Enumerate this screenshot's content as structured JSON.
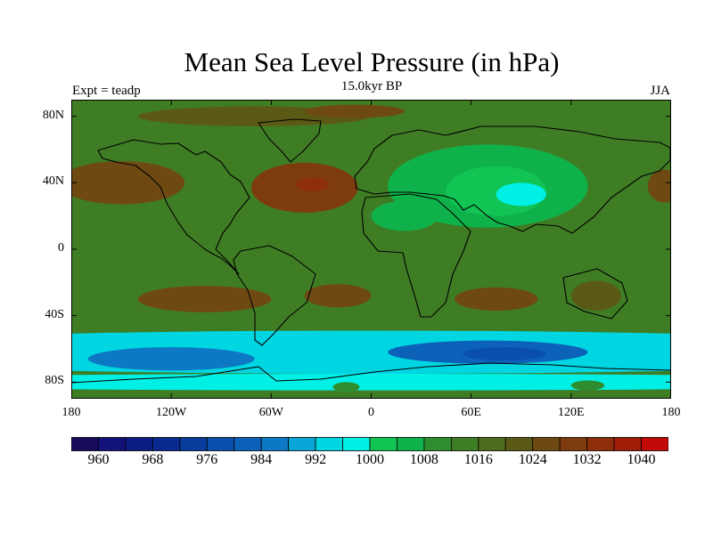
{
  "title": "Mean Sea Level Pressure (in hPa)",
  "subtitle": "15.0kyr BP",
  "left_label": "Expt = teadp",
  "right_label": "JJA",
  "lat_ticks": [
    {
      "label": "80N",
      "lat": 80
    },
    {
      "label": "40N",
      "lat": 40
    },
    {
      "label": "0",
      "lat": 0
    },
    {
      "label": "40S",
      "lat": -40
    },
    {
      "label": "80S",
      "lat": -80
    }
  ],
  "lon_ticks": [
    {
      "label": "180",
      "lon": -180
    },
    {
      "label": "120W",
      "lon": -120
    },
    {
      "label": "60W",
      "lon": -60
    },
    {
      "label": "0",
      "lon": 0
    },
    {
      "label": "60E",
      "lon": 60
    },
    {
      "label": "120E",
      "lon": 120
    },
    {
      "label": "180",
      "lon": 180
    }
  ],
  "colorbar": {
    "colors": [
      "#1a0a5c",
      "#12127a",
      "#0b1c84",
      "#092a8e",
      "#0a3c9c",
      "#0b4fac",
      "#0c62b8",
      "#0d78c4",
      "#08a6d6",
      "#00d6e2",
      "#00f0e6",
      "#11c454",
      "#0fb24a",
      "#2e8e2e",
      "#3f7d25",
      "#4e6a1c",
      "#5a5a16",
      "#6e4a12",
      "#7e3c0e",
      "#8e2e0a",
      "#a01d08",
      "#c20a08"
    ],
    "labels": [
      "960",
      "968",
      "976",
      "984",
      "992",
      "1000",
      "1008",
      "1016",
      "1024",
      "1032",
      "1040"
    ]
  },
  "chart_data": {
    "type": "heatmap",
    "variable": "Mean Sea Level Pressure",
    "units": "hPa",
    "season": "JJA",
    "period": "15.0kyr BP",
    "experiment": "teadp",
    "x_range": [
      -180,
      180
    ],
    "y_range": [
      -90,
      90
    ],
    "levels": [
      960,
      964,
      968,
      972,
      976,
      980,
      984,
      988,
      992,
      996,
      1000,
      1004,
      1008,
      1012,
      1016,
      1020,
      1024,
      1028,
      1032,
      1036,
      1040
    ],
    "background_value": 1014,
    "regions": [
      {
        "name": "Azores High",
        "lon": -40,
        "lat": 37,
        "rx": 32,
        "ry": 15,
        "value": 1028
      },
      {
        "name": "Azores High core",
        "lon": -35,
        "lat": 39,
        "rx": 10,
        "ry": 4,
        "value": 1034
      },
      {
        "name": "North Pacific High",
        "lon": -150,
        "lat": 40,
        "rx": 38,
        "ry": 13,
        "value": 1026
      },
      {
        "name": "North Pacific High west edge",
        "lon": 176,
        "lat": 38,
        "rx": 10,
        "ry": 10,
        "value": 1026
      },
      {
        "name": "Arctic ridge",
        "lon": -70,
        "lat": 80,
        "rx": 70,
        "ry": 6,
        "value": 1021
      },
      {
        "name": "Greenland high",
        "lon": -10,
        "lat": 83,
        "rx": 30,
        "ry": 4,
        "value": 1025
      },
      {
        "name": "Asian low",
        "lon": 70,
        "lat": 38,
        "rx": 60,
        "ry": 25,
        "value": 1007
      },
      {
        "name": "Asian low inner",
        "lon": 75,
        "lat": 35,
        "rx": 30,
        "ry": 15,
        "value": 1002
      },
      {
        "name": "Tibetan low core",
        "lon": 90,
        "lat": 33,
        "rx": 15,
        "ry": 7,
        "value": 997
      },
      {
        "name": "Saharan low",
        "lon": 20,
        "lat": 20,
        "rx": 20,
        "ry": 9,
        "value": 1007
      },
      {
        "name": "South Pacific High",
        "lon": -100,
        "lat": -30,
        "rx": 40,
        "ry": 8,
        "value": 1025
      },
      {
        "name": "South Atlantic High",
        "lon": -20,
        "lat": -28,
        "rx": 20,
        "ry": 7,
        "value": 1024
      },
      {
        "name": "Indian Ocean High",
        "lon": 75,
        "lat": -30,
        "rx": 25,
        "ry": 7,
        "value": 1025
      },
      {
        "name": "Australian High",
        "lon": 135,
        "lat": -28,
        "rx": 15,
        "ry": 9,
        "value": 1022
      },
      {
        "name": "Southern Ocean trough",
        "lon": 0,
        "lat": -62,
        "rx": 360,
        "ry": 13,
        "value": 994
      },
      {
        "name": "Circumpolar low Pacific",
        "lon": -120,
        "lat": -66,
        "rx": 50,
        "ry": 7,
        "value": 984
      },
      {
        "name": "Circumpolar low Indian",
        "lon": 70,
        "lat": -62,
        "rx": 60,
        "ry": 7,
        "value": 983
      },
      {
        "name": "Circumpolar low Indian core",
        "lon": 80,
        "lat": -63,
        "rx": 25,
        "ry": 4,
        "value": 977
      },
      {
        "name": "Antarctic coast",
        "lon": 0,
        "lat": -80,
        "rx": 360,
        "ry": 5,
        "value": 997
      },
      {
        "name": "Antarctic plateau high",
        "lon": -15,
        "lat": -83,
        "rx": 8,
        "ry": 3,
        "value": 1011
      },
      {
        "name": "Antarctic plateau high east",
        "lon": 130,
        "lat": -82,
        "rx": 10,
        "ry": 3,
        "value": 1009
      }
    ]
  }
}
